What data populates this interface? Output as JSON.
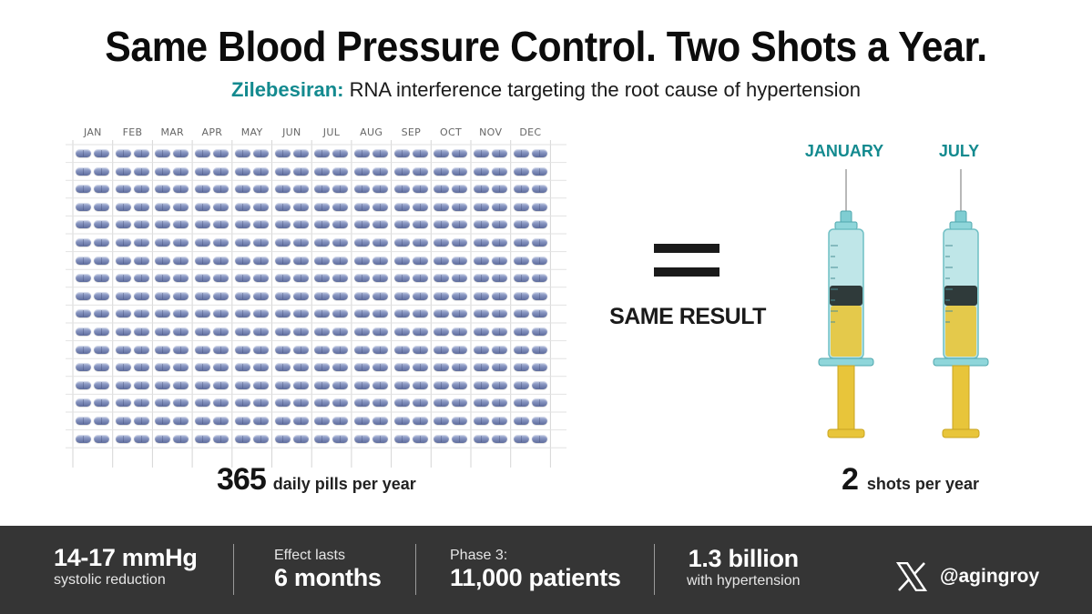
{
  "header": {
    "title": "Same Blood Pressure Control. Two Shots a Year.",
    "subtitle_drug": "Zilebesiran:",
    "subtitle_rest": " RNA interference targeting the root cause of hypertension"
  },
  "calendar": {
    "months": [
      "JAN",
      "FEB",
      "MAR",
      "APR",
      "MAY",
      "JUN",
      "JUL",
      "AUG",
      "SEP",
      "OCT",
      "NOV",
      "DEC"
    ],
    "pill_rows": 17,
    "pills_per_month": 2
  },
  "pills_caption": {
    "number": "365",
    "text": "daily pills per year"
  },
  "comparison": {
    "label": "SAME RESULT",
    "equals_icon": "equals-icon"
  },
  "shots": {
    "labels": [
      "JANUARY",
      "JULY"
    ],
    "caption_number": "2",
    "caption_text": "shots per year"
  },
  "colors": {
    "accent": "#138a8f",
    "bar_bg": "#353535",
    "pill": "#8290bd",
    "syringe_fluid": "#e8c53a",
    "syringe_barrel": "#bfe6e8"
  },
  "stats": [
    {
      "big": "14-17 mmHg",
      "small": "systolic reduction"
    },
    {
      "small": "Effect lasts",
      "big": "6 months"
    },
    {
      "small": "Phase 3:",
      "big": "11,000 patients"
    },
    {
      "big": "1.3 billion",
      "small": "with hypertension"
    }
  ],
  "social": {
    "icon": "x-logo-icon",
    "handle": "@agingroy"
  }
}
